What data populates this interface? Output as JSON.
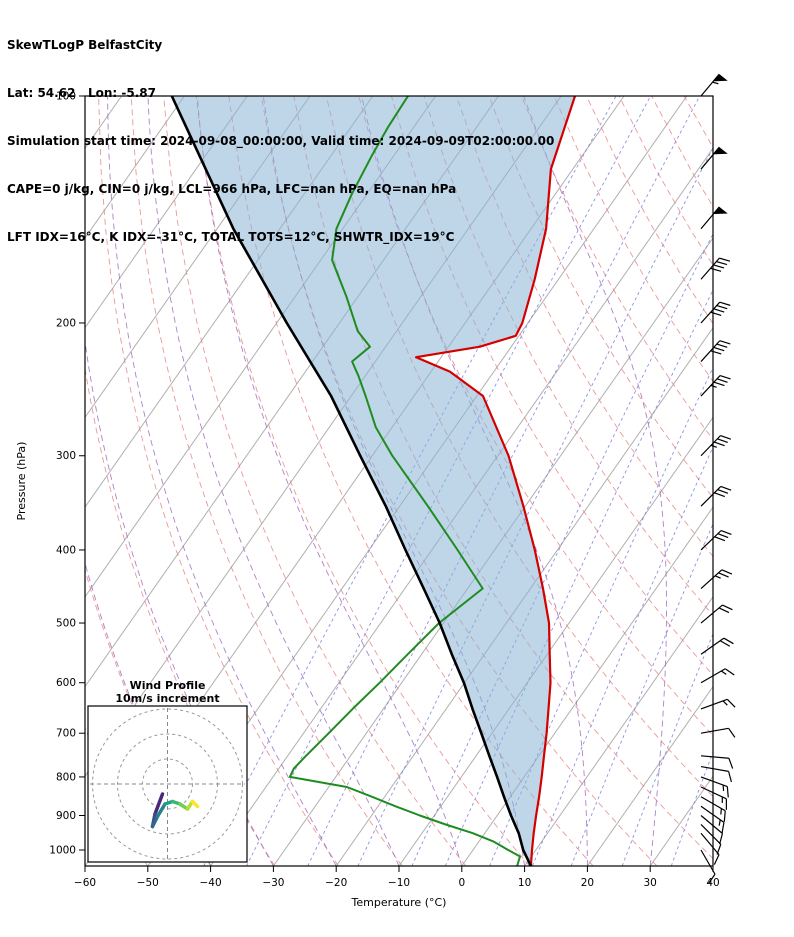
{
  "header": {
    "line1": "SkewTLogP BelfastCity",
    "line2": "Lat: 54.62   Lon: -5.87",
    "line3": "Simulation start time: 2024-09-08_00:00:00, Valid time: 2024-09-09T02:00:00.00",
    "line4": "CAPE=0 j/kg, CIN=0 j/kg, LCL=966 hPa, LFC=nan hPa, EQ=nan hPa",
    "line5": "LFT IDX=16°C, K IDX=-31°C, TOTAL TOTS=12°C, SHWTR_IDX=19°C"
  },
  "axes": {
    "xlabel": "Temperature (°C)",
    "ylabel": "Pressure (hPa)",
    "x_ticks": [
      -60,
      -50,
      -40,
      -30,
      -20,
      -10,
      0,
      10,
      20,
      30,
      40
    ],
    "p_ticks": [
      100,
      200,
      300,
      400,
      500,
      600,
      700,
      800,
      900,
      1000
    ],
    "x_range": [
      -60,
      40
    ],
    "pressure_range": [
      100,
      1050
    ]
  },
  "chart_data": {
    "type": "line",
    "title": "SkewTLogP BelfastCity",
    "xlabel": "Temperature (°C)",
    "ylabel": "Pressure (hPa)",
    "x_range": [
      -60,
      40
    ],
    "pressure_range": [
      100,
      1050
    ],
    "grid": "skewed isotherms, dry adiabats, moist adiabats, mixing-ratio lines",
    "series": [
      {
        "name": "temperature",
        "color": "#d40000",
        "points": [
          [
            1050,
            11.0
          ],
          [
            1000,
            9.4
          ],
          [
            950,
            7.8
          ],
          [
            900,
            6.2
          ],
          [
            850,
            4.6
          ],
          [
            800,
            2.8
          ],
          [
            750,
            0.8
          ],
          [
            700,
            -1.3
          ],
          [
            650,
            -3.7
          ],
          [
            600,
            -6.3
          ],
          [
            550,
            -9.6
          ],
          [
            500,
            -13.2
          ],
          [
            450,
            -18.0
          ],
          [
            400,
            -23.6
          ],
          [
            350,
            -30.3
          ],
          [
            300,
            -38.3
          ],
          [
            250,
            -49.0
          ],
          [
            232,
            -57.0
          ],
          [
            222,
            -64.0
          ],
          [
            215,
            -55.0
          ],
          [
            208,
            -50.5
          ],
          [
            200,
            -50.9
          ],
          [
            175,
            -53.8
          ],
          [
            150,
            -57.6
          ],
          [
            125,
            -63.5
          ],
          [
            100,
            -67.8
          ]
        ]
      },
      {
        "name": "dewpoint",
        "color": "#1f8c1f",
        "points": [
          [
            1050,
            8.8
          ],
          [
            1020,
            8.2
          ],
          [
            1000,
            5.6
          ],
          [
            975,
            2.4
          ],
          [
            950,
            -1.9
          ],
          [
            925,
            -7.2
          ],
          [
            900,
            -12.3
          ],
          [
            875,
            -17.2
          ],
          [
            850,
            -22.0
          ],
          [
            825,
            -27.1
          ],
          [
            800,
            -37.3
          ],
          [
            780,
            -37.6
          ],
          [
            750,
            -37.1
          ],
          [
            700,
            -36.0
          ],
          [
            650,
            -34.9
          ],
          [
            600,
            -33.5
          ],
          [
            550,
            -32.2
          ],
          [
            500,
            -30.7
          ],
          [
            450,
            -27.6
          ],
          [
            400,
            -35.9
          ],
          [
            350,
            -45.5
          ],
          [
            300,
            -56.8
          ],
          [
            275,
            -62.6
          ],
          [
            250,
            -67.7
          ],
          [
            235,
            -71.1
          ],
          [
            225,
            -73.7
          ],
          [
            215,
            -72.5
          ],
          [
            205,
            -76.2
          ],
          [
            185,
            -81.7
          ],
          [
            165,
            -88.2
          ],
          [
            150,
            -91.0
          ],
          [
            135,
            -92.4
          ],
          [
            120,
            -93.5
          ],
          [
            110,
            -94.1
          ],
          [
            100,
            -94.4
          ]
        ]
      },
      {
        "name": "surface_parcel",
        "color": "#000000",
        "points": [
          [
            1050,
            11.0
          ],
          [
            1000,
            8.0
          ],
          [
            950,
            5.4
          ],
          [
            900,
            2.2
          ],
          [
            850,
            -1.0
          ],
          [
            800,
            -4.3
          ],
          [
            750,
            -7.9
          ],
          [
            700,
            -11.7
          ],
          [
            650,
            -15.8
          ],
          [
            600,
            -20.1
          ],
          [
            550,
            -25.2
          ],
          [
            500,
            -30.6
          ],
          [
            450,
            -37.0
          ],
          [
            400,
            -44.2
          ],
          [
            350,
            -52.2
          ],
          [
            300,
            -61.9
          ],
          [
            250,
            -73.2
          ],
          [
            200,
            -88.4
          ],
          [
            150,
            -107.4
          ],
          [
            100,
            -132.0
          ]
        ]
      }
    ],
    "shaded_area": {
      "between": [
        "surface_parcel",
        "temperature"
      ],
      "color": "#88b4d6",
      "opacity": 0.55
    },
    "background_lines": {
      "isotherms_c": [
        -150,
        -140,
        -130,
        -120,
        -110,
        -100,
        -90,
        -80,
        -70,
        -60,
        -50,
        -40,
        -30,
        -20,
        -10,
        0,
        10,
        20,
        30,
        40
      ],
      "dry_adiabats_theta_k": [
        210,
        220,
        230,
        240,
        250,
        260,
        270,
        280,
        290,
        300,
        310,
        320,
        330,
        340,
        350,
        360,
        370,
        380,
        390,
        400,
        410,
        420,
        430,
        440,
        450,
        460,
        470,
        480,
        490,
        500
      ],
      "moist_adiabats_start_c": [
        -40,
        -30,
        -20,
        -10,
        0,
        10,
        20,
        30
      ],
      "mixing_ratio_g_kg": [
        0.1,
        0.2,
        0.5,
        1,
        2,
        3,
        5,
        8,
        12,
        20,
        32
      ]
    },
    "colors": {
      "isotherm": "#b0b0b0",
      "dry_adiabat": "#e57f7f",
      "moist_adiabat": "#a06cc0",
      "mixing_ratio": "#7d7de0"
    }
  },
  "wind_barbs": [
    {
      "p": 1000,
      "kt": 8,
      "dir": 150
    },
    {
      "p": 950,
      "kt": 10,
      "dir": 140
    },
    {
      "p": 925,
      "kt": 12,
      "dir": 135
    },
    {
      "p": 900,
      "kt": 12,
      "dir": 130
    },
    {
      "p": 875,
      "kt": 14,
      "dir": 125
    },
    {
      "p": 850,
      "kt": 14,
      "dir": 120
    },
    {
      "p": 825,
      "kt": 14,
      "dir": 115
    },
    {
      "p": 800,
      "kt": 14,
      "dir": 110
    },
    {
      "p": 775,
      "kt": 12,
      "dir": 100
    },
    {
      "p": 750,
      "kt": 12,
      "dir": 95
    },
    {
      "p": 700,
      "kt": 12,
      "dir": 80
    },
    {
      "p": 650,
      "kt": 14,
      "dir": 70
    },
    {
      "p": 600,
      "kt": 16,
      "dir": 60
    },
    {
      "p": 550,
      "kt": 18,
      "dir": 55
    },
    {
      "p": 500,
      "kt": 20,
      "dir": 50
    },
    {
      "p": 450,
      "kt": 24,
      "dir": 48
    },
    {
      "p": 400,
      "kt": 28,
      "dir": 46
    },
    {
      "p": 350,
      "kt": 30,
      "dir": 45
    },
    {
      "p": 300,
      "kt": 34,
      "dir": 44
    },
    {
      "p": 250,
      "kt": 36,
      "dir": 43
    },
    {
      "p": 225,
      "kt": 38,
      "dir": 42
    },
    {
      "p": 200,
      "kt": 40,
      "dir": 42
    },
    {
      "p": 175,
      "kt": 42,
      "dir": 41
    },
    {
      "p": 150,
      "kt": 50,
      "dir": 40
    },
    {
      "p": 125,
      "kt": 52,
      "dir": 40
    },
    {
      "p": 100,
      "kt": 55,
      "dir": 40
    }
  ],
  "hodograph": {
    "title1": "Wind Profile",
    "title2": "10m/s increment",
    "ring_spacing_ms": 10,
    "rings_ms": [
      10,
      20,
      30
    ],
    "track": [
      {
        "u": -2,
        "v": -4,
        "c": "#440154"
      },
      {
        "u": -5,
        "v": -12,
        "c": "#482878"
      },
      {
        "u": -6,
        "v": -17,
        "c": "#3e4a89"
      },
      {
        "u": -4,
        "v": -13,
        "c": "#31688e"
      },
      {
        "u": -1,
        "v": -8,
        "c": "#26828e"
      },
      {
        "u": 2,
        "v": -7,
        "c": "#1f9e89"
      },
      {
        "u": 5,
        "v": -8,
        "c": "#35b779"
      },
      {
        "u": 8,
        "v": -10,
        "c": "#6ece58"
      },
      {
        "u": 10,
        "v": -7,
        "c": "#b5de2b"
      },
      {
        "u": 12,
        "v": -9,
        "c": "#fde725"
      }
    ]
  }
}
